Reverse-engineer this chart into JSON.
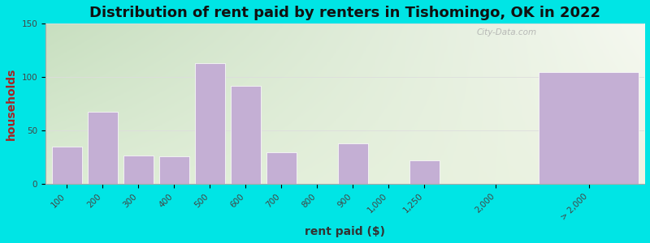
{
  "title": "Distribution of rent paid by renters in Tishomingo, OK in 2022",
  "xlabel": "rent paid ($)",
  "ylabel": "households",
  "bar_color": "#c4afd4",
  "background_outer": "#00e5e5",
  "background_tl": "#c8dfc0",
  "background_tr": "#f0f4f0",
  "background_bl": "#dcecd4",
  "background_br": "#e8f0dc",
  "ylim": [
    0,
    150
  ],
  "yticks": [
    0,
    50,
    100,
    150
  ],
  "categories": [
    "100",
    "200",
    "300",
    "400",
    "500",
    "600",
    "700",
    "800",
    "900",
    "1,000",
    "1,250",
    "2,000",
    "> 2,000"
  ],
  "values": [
    35,
    68,
    27,
    26,
    113,
    92,
    30,
    0,
    38,
    0,
    22,
    0,
    105
  ],
  "title_fontsize": 13,
  "axis_label_fontsize": 10,
  "tick_fontsize": 7.5,
  "ylabel_color": "#aa2222",
  "xlabel_color": "#333333",
  "title_color": "#111111",
  "watermark": "City-Data.com",
  "watermark_color": "#aaaaaa",
  "grid_color": "#dddddd",
  "spine_color": "#aaaaaa"
}
